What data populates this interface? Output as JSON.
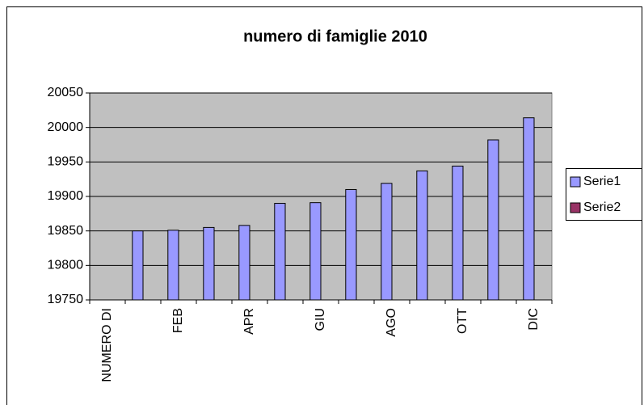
{
  "chart_data": {
    "type": "bar",
    "title": "numero di famiglie 2010",
    "categories": [
      "NUMERO DI",
      null,
      "FEB",
      null,
      "APR",
      null,
      "GIU",
      null,
      "AGO",
      null,
      "OTT",
      null,
      "DIC"
    ],
    "series": [
      {
        "name": "Serie1",
        "color": "#9999ff",
        "values": [
          null,
          19850,
          19851,
          19855,
          19858,
          19890,
          19891,
          19910,
          19919,
          19937,
          19944,
          19982,
          20014
        ]
      },
      {
        "name": "Serie2",
        "color": "#993366",
        "values": [
          null,
          null,
          null,
          null,
          null,
          null,
          null,
          null,
          null,
          null,
          null,
          null,
          null
        ]
      }
    ],
    "ylim": [
      19750,
      20050
    ],
    "yticks": [
      19750,
      19800,
      19850,
      19900,
      19950,
      20000,
      20050
    ],
    "grid": true,
    "legend": "right"
  }
}
